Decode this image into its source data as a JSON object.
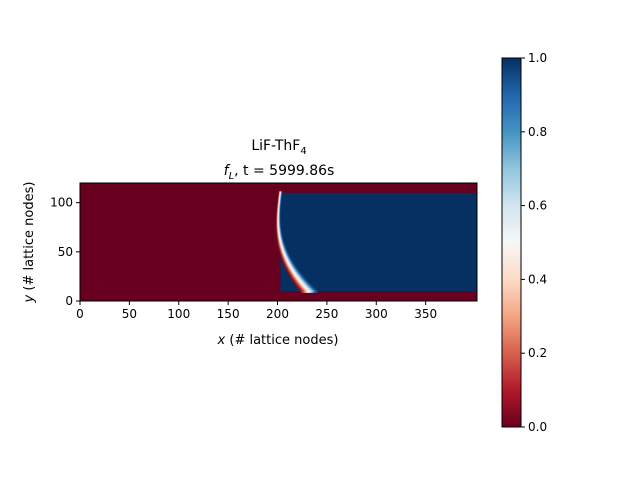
{
  "chart_data": {
    "type": "heatmap",
    "title_line1": "LiF-ThF",
    "title_line1_sub": "4",
    "title_line2_var": "f",
    "title_line2_var_sub": "L",
    "title_line2_rest": ", t = 5999.86s",
    "xlabel_var": "x",
    "xlabel_rest": " (# lattice nodes)",
    "ylabel_var": "y",
    "ylabel_rest": " (# lattice nodes)",
    "xlim": [
      0,
      402
    ],
    "ylim": [
      0,
      120
    ],
    "x_ticks": [
      0,
      50,
      100,
      150,
      200,
      250,
      300,
      350
    ],
    "y_ticks": [
      0,
      50,
      100
    ],
    "colormap": "RdBu",
    "clim": [
      0.0,
      1.0
    ],
    "colorbar_ticks": [
      0.0,
      0.2,
      0.4,
      0.6,
      0.8,
      1.0
    ],
    "colorbar_tick_labels": [
      "0.0",
      "0.2",
      "0.4",
      "0.6",
      "0.8",
      "1.0"
    ],
    "field": {
      "description_of_values": "liquid fraction",
      "solid_value": 0.0,
      "liquid_value": 1.0,
      "liquid_region_y": [
        10,
        110
      ],
      "front_x_at_top": 201,
      "front_x_at_bottom": 223,
      "mushy_zone_x_width": [
        4,
        18
      ]
    },
    "colors": {
      "solid": "#67001f",
      "liquid": "#053061"
    }
  }
}
